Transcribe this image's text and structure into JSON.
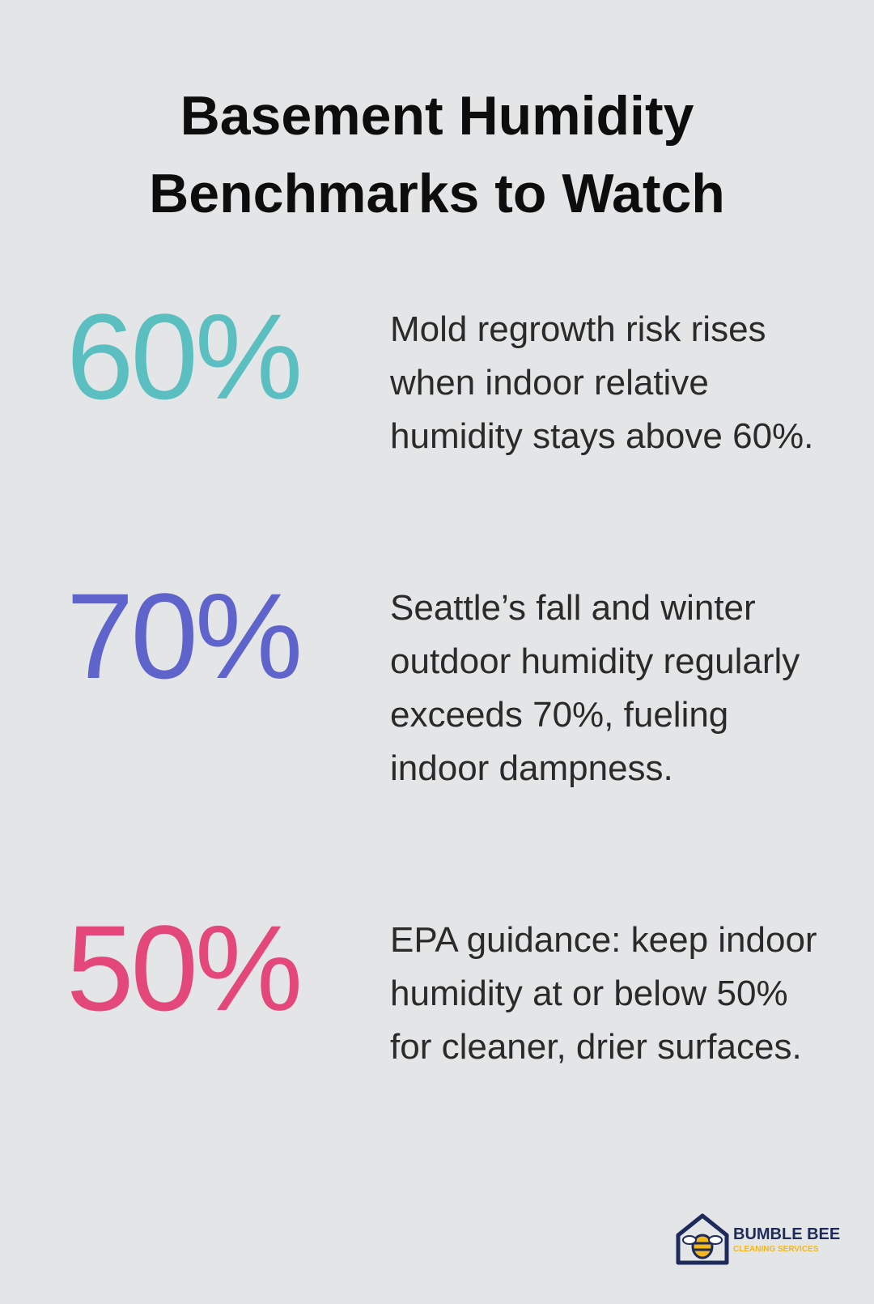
{
  "title": "Basement Humidity Benchmarks to Watch",
  "items": [
    {
      "stat": "60%",
      "color": "#5bbfc1",
      "text": "Mold regrowth risk rises when indoor relative humidity stays above 60%."
    },
    {
      "stat": "70%",
      "color": "#5f63cc",
      "text": "Seattle’s fall and winter outdoor humidity regularly exceeds 70%, fueling indoor dampness."
    },
    {
      "stat": "50%",
      "color": "#e4487a",
      "text": "EPA guidance: keep indoor humidity at or below 50% for cleaner, drier surfaces."
    }
  ],
  "logo": {
    "name": "BUMBLE BEE",
    "tagline": "CLEANING SERVICES"
  }
}
